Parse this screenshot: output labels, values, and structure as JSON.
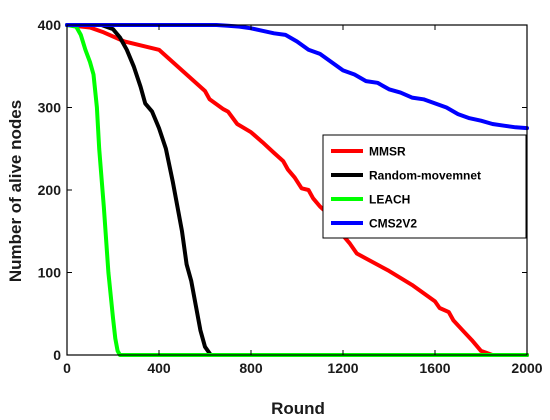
{
  "chart_data": {
    "type": "line",
    "xlabel": "Round",
    "ylabel": "Number of alive nodes",
    "xlim": [
      0,
      2000
    ],
    "ylim": [
      0,
      400
    ],
    "xticks": [
      "0",
      "400",
      "800",
      "1200",
      "1600",
      "2000"
    ],
    "yticks": [
      "0",
      "100",
      "200",
      "300",
      "400"
    ],
    "grid": false,
    "legend_position": "right",
    "series": [
      {
        "name": "MMSR",
        "color": "#ff0000",
        "points": [
          [
            0,
            400
          ],
          [
            100,
            397
          ],
          [
            160,
            391
          ],
          [
            250,
            380
          ],
          [
            400,
            370
          ],
          [
            480,
            350
          ],
          [
            560,
            330
          ],
          [
            600,
            320
          ],
          [
            620,
            310
          ],
          [
            680,
            298
          ],
          [
            700,
            295
          ],
          [
            740,
            280
          ],
          [
            800,
            270
          ],
          [
            850,
            258
          ],
          [
            900,
            245
          ],
          [
            940,
            235
          ],
          [
            960,
            225
          ],
          [
            990,
            215
          ],
          [
            1020,
            202
          ],
          [
            1050,
            200
          ],
          [
            1070,
            190
          ],
          [
            1100,
            180
          ],
          [
            1120,
            175
          ],
          [
            1140,
            165
          ],
          [
            1170,
            160
          ],
          [
            1200,
            145
          ],
          [
            1230,
            135
          ],
          [
            1260,
            123
          ],
          [
            1300,
            117
          ],
          [
            1400,
            102
          ],
          [
            1500,
            85
          ],
          [
            1600,
            65
          ],
          [
            1620,
            57
          ],
          [
            1660,
            52
          ],
          [
            1680,
            42
          ],
          [
            1720,
            30
          ],
          [
            1760,
            18
          ],
          [
            1800,
            5
          ],
          [
            1850,
            0
          ],
          [
            2000,
            0
          ]
        ]
      },
      {
        "name": "Random-movemnet",
        "color": "#000000",
        "points": [
          [
            0,
            400
          ],
          [
            150,
            400
          ],
          [
            200,
            395
          ],
          [
            230,
            385
          ],
          [
            260,
            370
          ],
          [
            290,
            350
          ],
          [
            320,
            325
          ],
          [
            340,
            305
          ],
          [
            370,
            295
          ],
          [
            400,
            275
          ],
          [
            430,
            250
          ],
          [
            460,
            210
          ],
          [
            480,
            180
          ],
          [
            500,
            150
          ],
          [
            520,
            110
          ],
          [
            540,
            90
          ],
          [
            560,
            60
          ],
          [
            580,
            30
          ],
          [
            600,
            10
          ],
          [
            625,
            0
          ],
          [
            2000,
            0
          ]
        ]
      },
      {
        "name": "LEACH",
        "color": "#00ff00",
        "points": [
          [
            0,
            400
          ],
          [
            40,
            398
          ],
          [
            60,
            388
          ],
          [
            80,
            370
          ],
          [
            100,
            355
          ],
          [
            115,
            340
          ],
          [
            130,
            300
          ],
          [
            140,
            250
          ],
          [
            160,
            180
          ],
          [
            180,
            100
          ],
          [
            200,
            45
          ],
          [
            210,
            20
          ],
          [
            220,
            5
          ],
          [
            230,
            0
          ],
          [
            2000,
            0
          ]
        ]
      },
      {
        "name": "CMS2V2",
        "color": "#0000ff",
        "points": [
          [
            0,
            400
          ],
          [
            650,
            400
          ],
          [
            700,
            399
          ],
          [
            750,
            398
          ],
          [
            800,
            396
          ],
          [
            850,
            393
          ],
          [
            900,
            390
          ],
          [
            950,
            388
          ],
          [
            1000,
            380
          ],
          [
            1050,
            370
          ],
          [
            1100,
            365
          ],
          [
            1150,
            355
          ],
          [
            1200,
            345
          ],
          [
            1250,
            340
          ],
          [
            1300,
            332
          ],
          [
            1350,
            330
          ],
          [
            1400,
            322
          ],
          [
            1450,
            318
          ],
          [
            1500,
            312
          ],
          [
            1550,
            310
          ],
          [
            1600,
            305
          ],
          [
            1650,
            300
          ],
          [
            1700,
            292
          ],
          [
            1750,
            287
          ],
          [
            1800,
            284
          ],
          [
            1850,
            280
          ],
          [
            1900,
            278
          ],
          [
            1950,
            276
          ],
          [
            2000,
            275
          ]
        ]
      }
    ]
  }
}
